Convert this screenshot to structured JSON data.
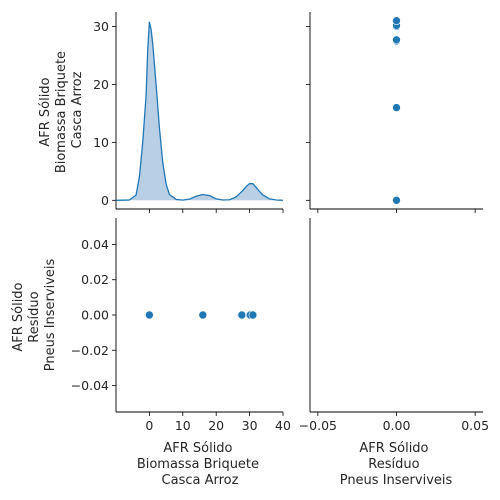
{
  "chart_data": {
    "type": "pairplot",
    "variables": [
      [
        "AFR Sólido",
        "Biomassa Briquete",
        "Casca Arroz"
      ],
      [
        "AFR Sólido",
        "Resíduo",
        "Pneus Inserviveis"
      ]
    ],
    "color": "#1f77b4",
    "kde_fill": "#b9cfe5",
    "points": {
      "var1": [
        0,
        0,
        16,
        27.5,
        27.7,
        30,
        30.2,
        31
      ],
      "var2": [
        0,
        0,
        0,
        0,
        0,
        0,
        0,
        0
      ]
    },
    "panels": {
      "top_left": {
        "type": "kde",
        "variable": "var1",
        "xlim": [
          -10,
          40
        ],
        "ylim": [
          -1.5,
          32.5
        ],
        "yticks": [
          "0",
          "10",
          "20",
          "30"
        ],
        "kde_curve": {
          "x": [
            -10,
            -6,
            -4,
            -3,
            -2,
            -1,
            -0.5,
            0,
            0.5,
            1,
            2,
            3,
            4,
            5,
            6,
            8,
            10,
            12,
            14,
            16,
            18,
            20,
            22,
            24,
            26,
            28,
            29,
            30,
            31,
            32,
            33,
            34,
            36,
            38,
            40
          ],
          "y": [
            0,
            0.05,
            0.9,
            4,
            10,
            18,
            26,
            30.8,
            29.5,
            27,
            20,
            12.5,
            6.5,
            2.8,
            1,
            0.15,
            0.03,
            0.2,
            0.7,
            1,
            0.8,
            0.25,
            0.05,
            0.1,
            0.6,
            1.7,
            2.4,
            2.9,
            2.85,
            2.2,
            1.5,
            0.9,
            0.25,
            0.05,
            0
          ]
        }
      },
      "top_right": {
        "type": "scatter",
        "x": "var2",
        "y": "var1",
        "xlim": [
          -0.055,
          0.055
        ],
        "ylim": [
          -1.5,
          32.5
        ]
      },
      "bottom_left": {
        "type": "scatter",
        "x": "var1",
        "y": "var2",
        "xlim": [
          -10,
          40
        ],
        "ylim": [
          -0.055,
          0.055
        ],
        "xticks": [
          "0",
          "10",
          "20",
          "30",
          "40"
        ],
        "yticks": [
          "0.04",
          "0.02",
          "0.00",
          "−0.02",
          "−0.04"
        ]
      },
      "bottom_right": {
        "type": "empty",
        "xlim": [
          -0.055,
          0.055
        ],
        "xticks": [
          "−0.05",
          "0.00",
          "0.05"
        ]
      }
    }
  }
}
